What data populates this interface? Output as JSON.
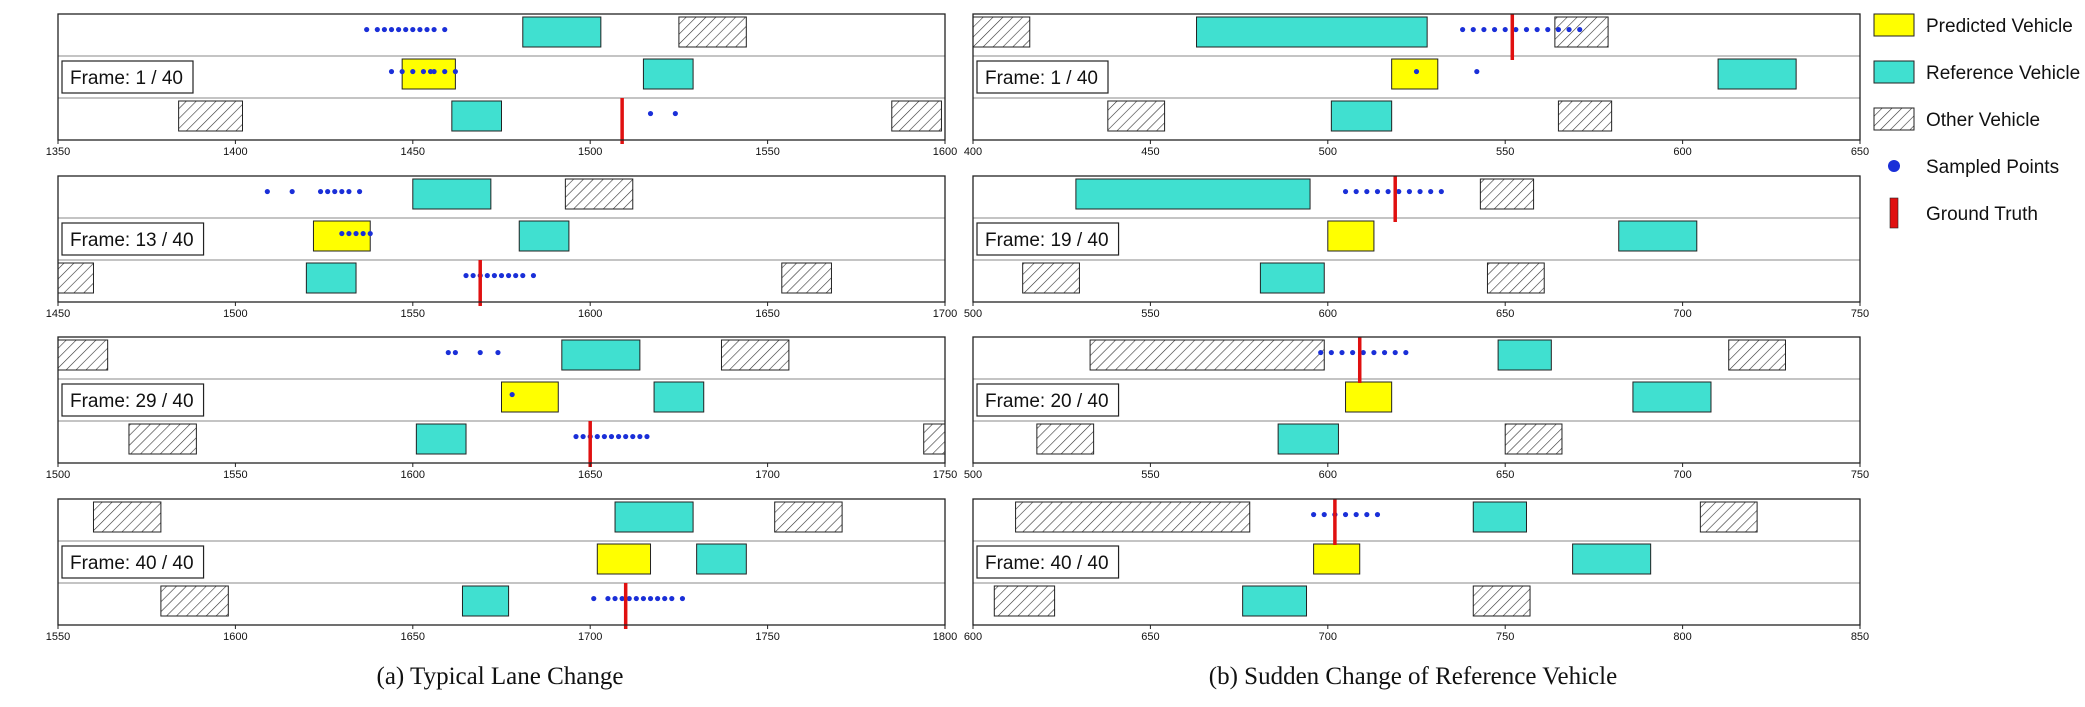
{
  "captions": {
    "a": "(a) Typical Lane Change",
    "b": "(b) Sudden Change of Reference Vehicle"
  },
  "frame_prefix": "Frame: ",
  "legend": [
    {
      "kind": "predicted",
      "label": "Predicted Vehicle",
      "color": "#ffff00"
    },
    {
      "kind": "reference",
      "label": "Reference Vehicle",
      "color": "#40e0d0"
    },
    {
      "kind": "other",
      "label": "Other Vehicle"
    },
    {
      "kind": "sampled",
      "label": "Sampled Points",
      "color": "#1a2fd8"
    },
    {
      "kind": "truth",
      "label": "Ground Truth",
      "color": "#e01010"
    }
  ],
  "colors": {
    "predicted": "#ffff00",
    "reference": "#40e0d0",
    "sampled": "#1a2fd8",
    "truth": "#e01010"
  },
  "chart_data": [
    {
      "panel": "a",
      "frame": "1 / 40",
      "xlim": [
        1350,
        1600
      ],
      "ticks": [
        1350,
        1400,
        1450,
        1500,
        1550,
        1600
      ],
      "vehicles": [
        {
          "kind": "reference",
          "lane": 0,
          "x0": 1481,
          "x1": 1503
        },
        {
          "kind": "other",
          "lane": 0,
          "x0": 1525,
          "x1": 1544
        },
        {
          "kind": "predicted",
          "lane": 1,
          "x0": 1447,
          "x1": 1462
        },
        {
          "kind": "reference",
          "lane": 1,
          "x0": 1515,
          "x1": 1529
        },
        {
          "kind": "other",
          "lane": 2,
          "x0": 1384,
          "x1": 1402
        },
        {
          "kind": "reference",
          "lane": 2,
          "x0": 1461,
          "x1": 1475
        },
        {
          "kind": "other",
          "lane": 2,
          "x0": 1585,
          "x1": 1599
        }
      ],
      "points": [
        {
          "lane": 0,
          "xs": [
            1437,
            1440,
            1442,
            1444,
            1446,
            1448,
            1450,
            1452,
            1454,
            1456,
            1459
          ]
        },
        {
          "lane": 1,
          "xs": [
            1444,
            1447,
            1450,
            1453,
            1456,
            1459,
            1462,
            1455
          ]
        },
        {
          "lane": 2,
          "xs": [
            1517,
            1524
          ]
        }
      ],
      "truth": {
        "lane": 2,
        "x": 1509
      }
    },
    {
      "panel": "a",
      "frame": "13 / 40",
      "xlim": [
        1450,
        1700
      ],
      "ticks": [
        1450,
        1500,
        1550,
        1600,
        1650,
        1700
      ],
      "vehicles": [
        {
          "kind": "reference",
          "lane": 0,
          "x0": 1550,
          "x1": 1572
        },
        {
          "kind": "other",
          "lane": 0,
          "x0": 1593,
          "x1": 1612
        },
        {
          "kind": "predicted",
          "lane": 1,
          "x0": 1522,
          "x1": 1538
        },
        {
          "kind": "reference",
          "lane": 1,
          "x0": 1580,
          "x1": 1594
        },
        {
          "kind": "other",
          "lane": 2,
          "x0": 1450,
          "x1": 1460
        },
        {
          "kind": "reference",
          "lane": 2,
          "x0": 1520,
          "x1": 1534
        },
        {
          "kind": "other",
          "lane": 2,
          "x0": 1654,
          "x1": 1668
        }
      ],
      "points": [
        {
          "lane": 0,
          "xs": [
            1509,
            1516,
            1524,
            1526,
            1528,
            1530,
            1532,
            1535
          ]
        },
        {
          "lane": 1,
          "xs": [
            1530,
            1532,
            1534,
            1536,
            1538
          ]
        },
        {
          "lane": 2,
          "xs": [
            1565,
            1567,
            1569,
            1571,
            1573,
            1575,
            1577,
            1579,
            1581,
            1584
          ]
        }
      ],
      "truth": {
        "lane": 2,
        "x": 1569
      }
    },
    {
      "panel": "a",
      "frame": "29 / 40",
      "xlim": [
        1500,
        1750
      ],
      "ticks": [
        1500,
        1550,
        1600,
        1650,
        1700,
        1750
      ],
      "vehicles": [
        {
          "kind": "other",
          "lane": 0,
          "x0": 1500,
          "x1": 1514
        },
        {
          "kind": "reference",
          "lane": 0,
          "x0": 1642,
          "x1": 1664
        },
        {
          "kind": "other",
          "lane": 0,
          "x0": 1687,
          "x1": 1706
        },
        {
          "kind": "predicted",
          "lane": 1,
          "x0": 1625,
          "x1": 1641
        },
        {
          "kind": "reference",
          "lane": 1,
          "x0": 1668,
          "x1": 1682
        },
        {
          "kind": "other",
          "lane": 2,
          "x0": 1520,
          "x1": 1539
        },
        {
          "kind": "reference",
          "lane": 2,
          "x0": 1601,
          "x1": 1615
        },
        {
          "kind": "other",
          "lane": 2,
          "x0": 1744,
          "x1": 1750
        }
      ],
      "points": [
        {
          "lane": 0,
          "xs": [
            1610,
            1612,
            1619,
            1624
          ]
        },
        {
          "lane": 1,
          "xs": [
            1628
          ]
        },
        {
          "lane": 2,
          "xs": [
            1646,
            1648,
            1650,
            1652,
            1654,
            1656,
            1658,
            1660,
            1662,
            1664,
            1666
          ]
        }
      ],
      "truth": {
        "lane": 2,
        "x": 1650
      }
    },
    {
      "panel": "a",
      "frame": "40 / 40",
      "xlim": [
        1550,
        1800
      ],
      "ticks": [
        1550,
        1600,
        1650,
        1700,
        1750,
        1800
      ],
      "vehicles": [
        {
          "kind": "other",
          "lane": 0,
          "x0": 1560,
          "x1": 1579
        },
        {
          "kind": "reference",
          "lane": 0,
          "x0": 1707,
          "x1": 1729
        },
        {
          "kind": "other",
          "lane": 0,
          "x0": 1752,
          "x1": 1771
        },
        {
          "kind": "predicted",
          "lane": 1,
          "x0": 1702,
          "x1": 1717
        },
        {
          "kind": "reference",
          "lane": 1,
          "x0": 1730,
          "x1": 1744
        },
        {
          "kind": "other",
          "lane": 2,
          "x0": 1579,
          "x1": 1598
        },
        {
          "kind": "reference",
          "lane": 2,
          "x0": 1664,
          "x1": 1677
        }
      ],
      "points": [
        {
          "lane": 2,
          "xs": [
            1701,
            1705,
            1707,
            1709,
            1711,
            1713,
            1715,
            1717,
            1719,
            1721,
            1723,
            1726
          ]
        }
      ],
      "truth": {
        "lane": 2,
        "x": 1710
      }
    },
    {
      "panel": "b",
      "frame": "1 / 40",
      "xlim": [
        400,
        650
      ],
      "ticks": [
        400,
        450,
        500,
        550,
        600,
        650
      ],
      "vehicles": [
        {
          "kind": "other",
          "lane": 0,
          "x0": 400,
          "x1": 416
        },
        {
          "kind": "reference",
          "lane": 0,
          "x0": 463,
          "x1": 528
        },
        {
          "kind": "other",
          "lane": 0,
          "x0": 564,
          "x1": 579
        },
        {
          "kind": "predicted",
          "lane": 1,
          "x0": 518,
          "x1": 531
        },
        {
          "kind": "reference",
          "lane": 1,
          "x0": 610,
          "x1": 632
        },
        {
          "kind": "other",
          "lane": 2,
          "x0": 438,
          "x1": 454
        },
        {
          "kind": "reference",
          "lane": 2,
          "x0": 501,
          "x1": 518
        },
        {
          "kind": "other",
          "lane": 2,
          "x0": 565,
          "x1": 580
        }
      ],
      "points": [
        {
          "lane": 0,
          "xs": [
            538,
            541,
            544,
            547,
            550,
            553,
            556,
            559,
            562,
            565,
            568,
            571
          ]
        },
        {
          "lane": 1,
          "xs": [
            525,
            542
          ]
        }
      ],
      "truth": {
        "lane": 0,
        "x": 552
      }
    },
    {
      "panel": "b",
      "frame": "19 / 40",
      "xlim": [
        500,
        750
      ],
      "ticks": [
        500,
        550,
        600,
        650,
        700,
        750
      ],
      "vehicles": [
        {
          "kind": "reference",
          "lane": 0,
          "x0": 529,
          "x1": 595
        },
        {
          "kind": "other",
          "lane": 0,
          "x0": 643,
          "x1": 658
        },
        {
          "kind": "predicted",
          "lane": 1,
          "x0": 600,
          "x1": 613
        },
        {
          "kind": "reference",
          "lane": 1,
          "x0": 682,
          "x1": 704
        },
        {
          "kind": "other",
          "lane": 2,
          "x0": 514,
          "x1": 530
        },
        {
          "kind": "reference",
          "lane": 2,
          "x0": 581,
          "x1": 599
        },
        {
          "kind": "other",
          "lane": 2,
          "x0": 645,
          "x1": 661
        }
      ],
      "points": [
        {
          "lane": 0,
          "xs": [
            605,
            608,
            611,
            614,
            617,
            620,
            623,
            626,
            629,
            632
          ]
        }
      ],
      "truth": {
        "lane": 0,
        "x": 619
      }
    },
    {
      "panel": "b",
      "frame": "20 / 40",
      "xlim": [
        500,
        750
      ],
      "ticks": [
        500,
        550,
        600,
        650,
        700,
        750
      ],
      "vehicles": [
        {
          "kind": "other",
          "lane": 0,
          "x0": 533,
          "x1": 599
        },
        {
          "kind": "reference",
          "lane": 0,
          "x0": 648,
          "x1": 663
        },
        {
          "kind": "other",
          "lane": 0,
          "x0": 713,
          "x1": 729
        },
        {
          "kind": "predicted",
          "lane": 1,
          "x0": 605,
          "x1": 618
        },
        {
          "kind": "reference",
          "lane": 1,
          "x0": 686,
          "x1": 708
        },
        {
          "kind": "other",
          "lane": 2,
          "x0": 518,
          "x1": 534
        },
        {
          "kind": "reference",
          "lane": 2,
          "x0": 586,
          "x1": 603
        },
        {
          "kind": "other",
          "lane": 2,
          "x0": 650,
          "x1": 666
        }
      ],
      "points": [
        {
          "lane": 0,
          "xs": [
            598,
            601,
            604,
            607,
            610,
            613,
            616,
            619,
            622
          ]
        }
      ],
      "truth": {
        "lane": 0,
        "x": 609
      }
    },
    {
      "panel": "b",
      "frame": "40 / 40",
      "xlim": [
        600,
        850
      ],
      "ticks": [
        600,
        650,
        700,
        750,
        800,
        850
      ],
      "vehicles": [
        {
          "kind": "other",
          "lane": 0,
          "x0": 612,
          "x1": 678
        },
        {
          "kind": "reference",
          "lane": 0,
          "x0": 741,
          "x1": 756
        },
        {
          "kind": "other",
          "lane": 0,
          "x0": 805,
          "x1": 821
        },
        {
          "kind": "predicted",
          "lane": 1,
          "x0": 696,
          "x1": 709
        },
        {
          "kind": "reference",
          "lane": 1,
          "x0": 769,
          "x1": 791
        },
        {
          "kind": "other",
          "lane": 2,
          "x0": 606,
          "x1": 623
        },
        {
          "kind": "reference",
          "lane": 2,
          "x0": 676,
          "x1": 694
        },
        {
          "kind": "other",
          "lane": 2,
          "x0": 741,
          "x1": 757
        }
      ],
      "points": [
        {
          "lane": 0,
          "xs": [
            696,
            699,
            702,
            705,
            708,
            711,
            714
          ]
        }
      ],
      "truth": {
        "lane": 0,
        "x": 702
      }
    }
  ]
}
